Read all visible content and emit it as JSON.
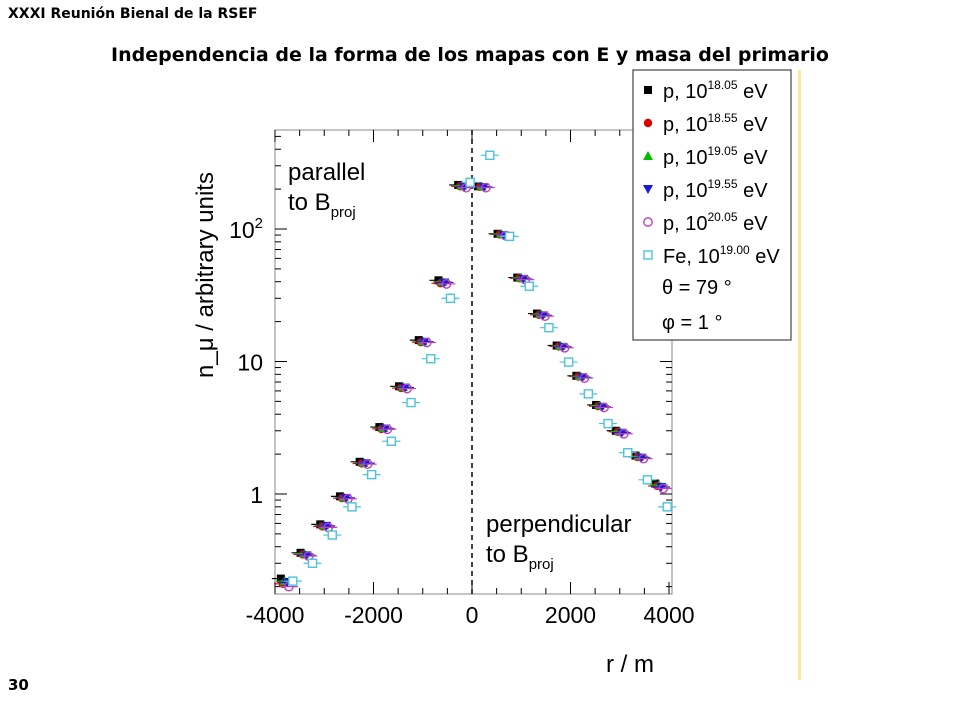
{
  "header": {
    "conference": "XXXI Reunión Bienal de la RSEF"
  },
  "slide": {
    "title": "Independencia de la forma de los mapas con E y masa del primario",
    "page_number": "30"
  },
  "colors": {
    "p_18_05": "#000000",
    "p_18_55": "#dd0000",
    "p_19_05": "#00bb00",
    "p_19_55": "#1a1ad6",
    "p_20_05": "#c040c0",
    "fe_19_00": "#4cc3d8",
    "highlight_rule": "#f7e7a0"
  },
  "chart_data": {
    "type": "scatter",
    "title": "",
    "xlabel": "r / m",
    "ylabel": "n_μ / arbitrary units",
    "xlim": [
      -4000,
      4000
    ],
    "ylim": [
      0.2,
      600
    ],
    "y_scale": "log",
    "x_ticks": [
      "-4000",
      "-2000",
      "0",
      "2000",
      "4000"
    ],
    "y_ticks": [
      "1",
      "10",
      "10²"
    ],
    "annotations": {
      "left_main": "parallel",
      "left_sub": "to B",
      "left_subscript": "proj",
      "right_main": "perpendicular",
      "right_sub": "to B",
      "right_subscript": "proj"
    },
    "vertical_line_x": 0,
    "legend": {
      "placement": "top-right",
      "entries": [
        {
          "particle": "p,",
          "base": "10",
          "exp": "18.05",
          "unit": "eV",
          "marker": "square"
        },
        {
          "particle": "p,",
          "base": "10",
          "exp": "18.55",
          "unit": "eV",
          "marker": "circle"
        },
        {
          "particle": "p,",
          "base": "10",
          "exp": "19.05",
          "unit": "eV",
          "marker": "triangle-up"
        },
        {
          "particle": "p,",
          "base": "10",
          "exp": "19.55",
          "unit": "eV",
          "marker": "triangle-down"
        },
        {
          "particle": "p,",
          "base": "10",
          "exp": "20.05",
          "unit": "eV",
          "marker": "open-circle"
        },
        {
          "particle": "Fe,",
          "base": "10",
          "exp": "19.00",
          "unit": "eV",
          "marker": "open-square"
        }
      ],
      "theta": "θ = 79 °",
      "phi": "φ = 1 °"
    },
    "x": [
      -3800,
      -3400,
      -3000,
      -2600,
      -2200,
      -1800,
      -1400,
      -1000,
      -600,
      -200,
      200,
      600,
      1000,
      1400,
      1800,
      2200,
      2600,
      3000,
      3400,
      3800
    ],
    "series": [
      {
        "name": "p, 10^18.05 eV",
        "values": [
          0.23,
          0.36,
          0.59,
          0.96,
          1.75,
          3.2,
          6.5,
          14.5,
          41,
          215,
          210,
          92,
          43,
          23,
          13.2,
          7.8,
          4.7,
          3.0,
          1.95,
          1.2
        ]
      },
      {
        "name": "p, 10^18.55 eV",
        "values": [
          0.21,
          0.35,
          0.57,
          0.93,
          1.7,
          3.1,
          6.3,
          14.0,
          39,
          210,
          208,
          91,
          42.5,
          22.5,
          13.0,
          7.7,
          4.6,
          2.95,
          1.9,
          1.15
        ]
      },
      {
        "name": "p, 10^19.05 eV",
        "values": [
          0.22,
          0.355,
          0.58,
          0.94,
          1.72,
          3.15,
          6.4,
          14.2,
          40,
          212,
          209,
          91.5,
          42.8,
          22.8,
          13.1,
          7.75,
          4.65,
          2.97,
          1.92,
          1.17
        ]
      },
      {
        "name": "p, 10^19.55 eV",
        "values": [
          0.215,
          0.345,
          0.575,
          0.935,
          1.71,
          3.12,
          6.35,
          14.1,
          39.5,
          208,
          207,
          90,
          42,
          22.3,
          12.9,
          7.6,
          4.55,
          2.9,
          1.88,
          1.13
        ]
      },
      {
        "name": "p, 10^20.05 eV",
        "values": [
          0.2,
          0.34,
          0.56,
          0.92,
          1.68,
          3.08,
          6.25,
          13.9,
          38.5,
          205,
          205,
          89,
          41.5,
          22,
          12.7,
          7.5,
          4.5,
          2.85,
          1.85,
          1.1
        ]
      },
      {
        "name": "Fe, 10^19.00 eV",
        "values": [
          0.22,
          0.3,
          0.49,
          0.8,
          1.4,
          2.5,
          4.9,
          10.5,
          30,
          225,
          360,
          88,
          37,
          18,
          9.9,
          5.7,
          3.4,
          2.05,
          1.28,
          0.8
        ]
      }
    ]
  }
}
